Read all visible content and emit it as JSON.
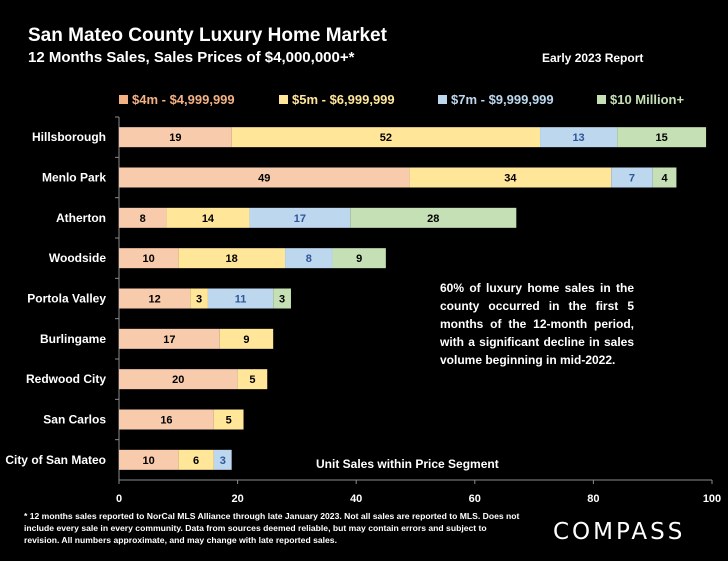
{
  "header": {
    "title": "San Mateo County Luxury Home Market",
    "subtitle": "12 Months Sales, Sales Prices of $4,000,000+*",
    "report": "Early 2023 Report"
  },
  "note": "60% of luxury home sales in the county occurred in the first 5 months of the 12-month period, with a significant decline in sales volume beginning in mid-2022.",
  "footnote": "* 12 months sales reported to NorCal MLS Alliance through late January 2023. Not all sales are reported to MLS. Does not include every sale in every community. Data from  sources deemed reliable, but may contain errors and subject to revision. All numbers approximate, and may change with late reported sales.",
  "brand": "COMPASS",
  "colors": {
    "s1": "#f8cbad",
    "s2": "#ffe699",
    "s3": "#bdd7ee",
    "s4": "#c5e0b4",
    "l1": "#f4b183",
    "l2": "#ffe699",
    "l3": "#bdd7ee",
    "l4": "#c5e0b4",
    "blue_label": "#2f5597"
  },
  "chart_data": {
    "type": "bar",
    "orientation": "horizontal",
    "stacked": true,
    "categories": [
      "Hillsborough",
      "Menlo Park",
      "Atherton",
      "Woodside",
      "Portola Valley",
      "Burlingame",
      "Redwood City",
      "San Carlos",
      "City of San Mateo"
    ],
    "series": [
      {
        "name": "$4m - $4,999,999",
        "values": [
          19,
          49,
          8,
          10,
          12,
          17,
          20,
          16,
          10
        ]
      },
      {
        "name": "$5m - $6,999,999",
        "values": [
          52,
          34,
          14,
          18,
          3,
          9,
          5,
          5,
          6
        ]
      },
      {
        "name": "$7m - $9,999,999",
        "values": [
          13,
          7,
          17,
          8,
          11,
          null,
          null,
          null,
          3
        ]
      },
      {
        "name": "$10 Million+",
        "values": [
          15,
          4,
          28,
          9,
          3,
          null,
          null,
          null,
          null
        ]
      }
    ],
    "xlabel": "Unit Sales within Price Segment",
    "xlim": [
      0,
      100
    ],
    "xticks": [
      0,
      20,
      40,
      60,
      80,
      100
    ],
    "grid": false,
    "legend": "top"
  }
}
